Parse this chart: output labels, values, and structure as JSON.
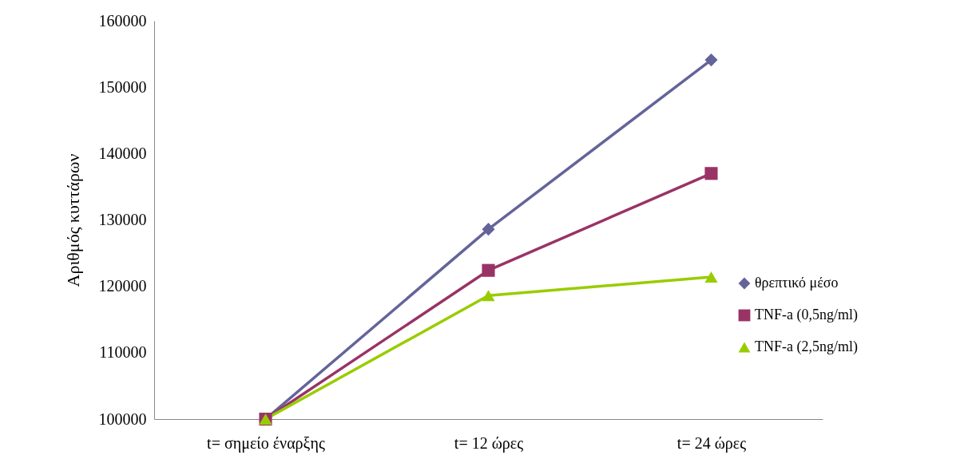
{
  "chart_data": {
    "type": "line",
    "ylabel": "Αριθμός κυττάρων",
    "categories": [
      "t= σημείο έναρξης",
      "t= 12 ώρες",
      "t= 24 ώρες"
    ],
    "series": [
      {
        "name": "θρεπτικό μέσο",
        "color": "#64649a",
        "marker": "diamond",
        "values": [
          100000,
          128600,
          154100
        ]
      },
      {
        "name": "TNF-a (0,5ng/ml)",
        "color": "#993366",
        "marker": "square",
        "values": [
          100000,
          122400,
          137000
        ]
      },
      {
        "name": "TNF-a (2,5ng/ml)",
        "color": "#99cc00",
        "marker": "triangle",
        "values": [
          100000,
          118600,
          121400
        ]
      }
    ],
    "ylim": [
      100000,
      160000
    ],
    "yticks": [
      100000,
      110000,
      120000,
      130000,
      140000,
      150000,
      160000
    ],
    "grid": false,
    "legend": "right",
    "line_style": "solid"
  }
}
